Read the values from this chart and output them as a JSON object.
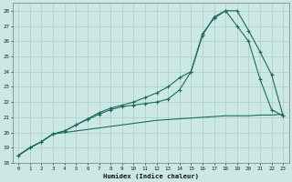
{
  "xlabel": "Humidex (Indice chaleur)",
  "bg_color": "#cce8e4",
  "grid_color": "#aaceca",
  "line_color": "#1a6b5a",
  "xlim": [
    -0.5,
    23.5
  ],
  "ylim": [
    18,
    28.5
  ],
  "xticks": [
    0,
    1,
    2,
    3,
    4,
    5,
    6,
    7,
    8,
    9,
    10,
    11,
    12,
    13,
    14,
    15,
    16,
    17,
    18,
    19,
    20,
    21,
    22,
    23
  ],
  "yticks": [
    18,
    19,
    20,
    21,
    22,
    23,
    24,
    25,
    26,
    27,
    28
  ],
  "line1_x": [
    0,
    1,
    2,
    3,
    4,
    5,
    6,
    7,
    8,
    9,
    10,
    11,
    12,
    13,
    14,
    15,
    16,
    17,
    18,
    19,
    20,
    21,
    22,
    23
  ],
  "line1_y": [
    18.5,
    19.0,
    19.4,
    19.9,
    20.0,
    20.1,
    20.2,
    20.3,
    20.4,
    20.5,
    20.6,
    20.7,
    20.8,
    20.85,
    20.9,
    20.95,
    21.0,
    21.05,
    21.1,
    21.1,
    21.1,
    21.15,
    21.15,
    21.2
  ],
  "line2_x": [
    0,
    1,
    2,
    3,
    4,
    5,
    6,
    7,
    8,
    9,
    10,
    11,
    12,
    13,
    14,
    15,
    16,
    17,
    18,
    19,
    20,
    21,
    22,
    23
  ],
  "line2_y": [
    18.5,
    19.0,
    19.4,
    19.9,
    20.1,
    20.5,
    20.9,
    21.3,
    21.6,
    21.8,
    22.0,
    22.3,
    22.6,
    23.0,
    23.6,
    24.0,
    26.5,
    27.5,
    28.0,
    27.0,
    26.0,
    23.5,
    21.5,
    21.1
  ],
  "line3_x": [
    0,
    1,
    2,
    3,
    4,
    5,
    6,
    7,
    8,
    9,
    10,
    11,
    12,
    13,
    14,
    15,
    16,
    17,
    18,
    19,
    20,
    21,
    22,
    23
  ],
  "line3_y": [
    18.5,
    19.0,
    19.4,
    19.9,
    20.1,
    20.5,
    20.85,
    21.2,
    21.5,
    21.7,
    21.8,
    21.9,
    22.0,
    22.2,
    22.8,
    24.0,
    26.4,
    27.6,
    28.0,
    28.0,
    26.7,
    25.3,
    23.8,
    21.1
  ]
}
